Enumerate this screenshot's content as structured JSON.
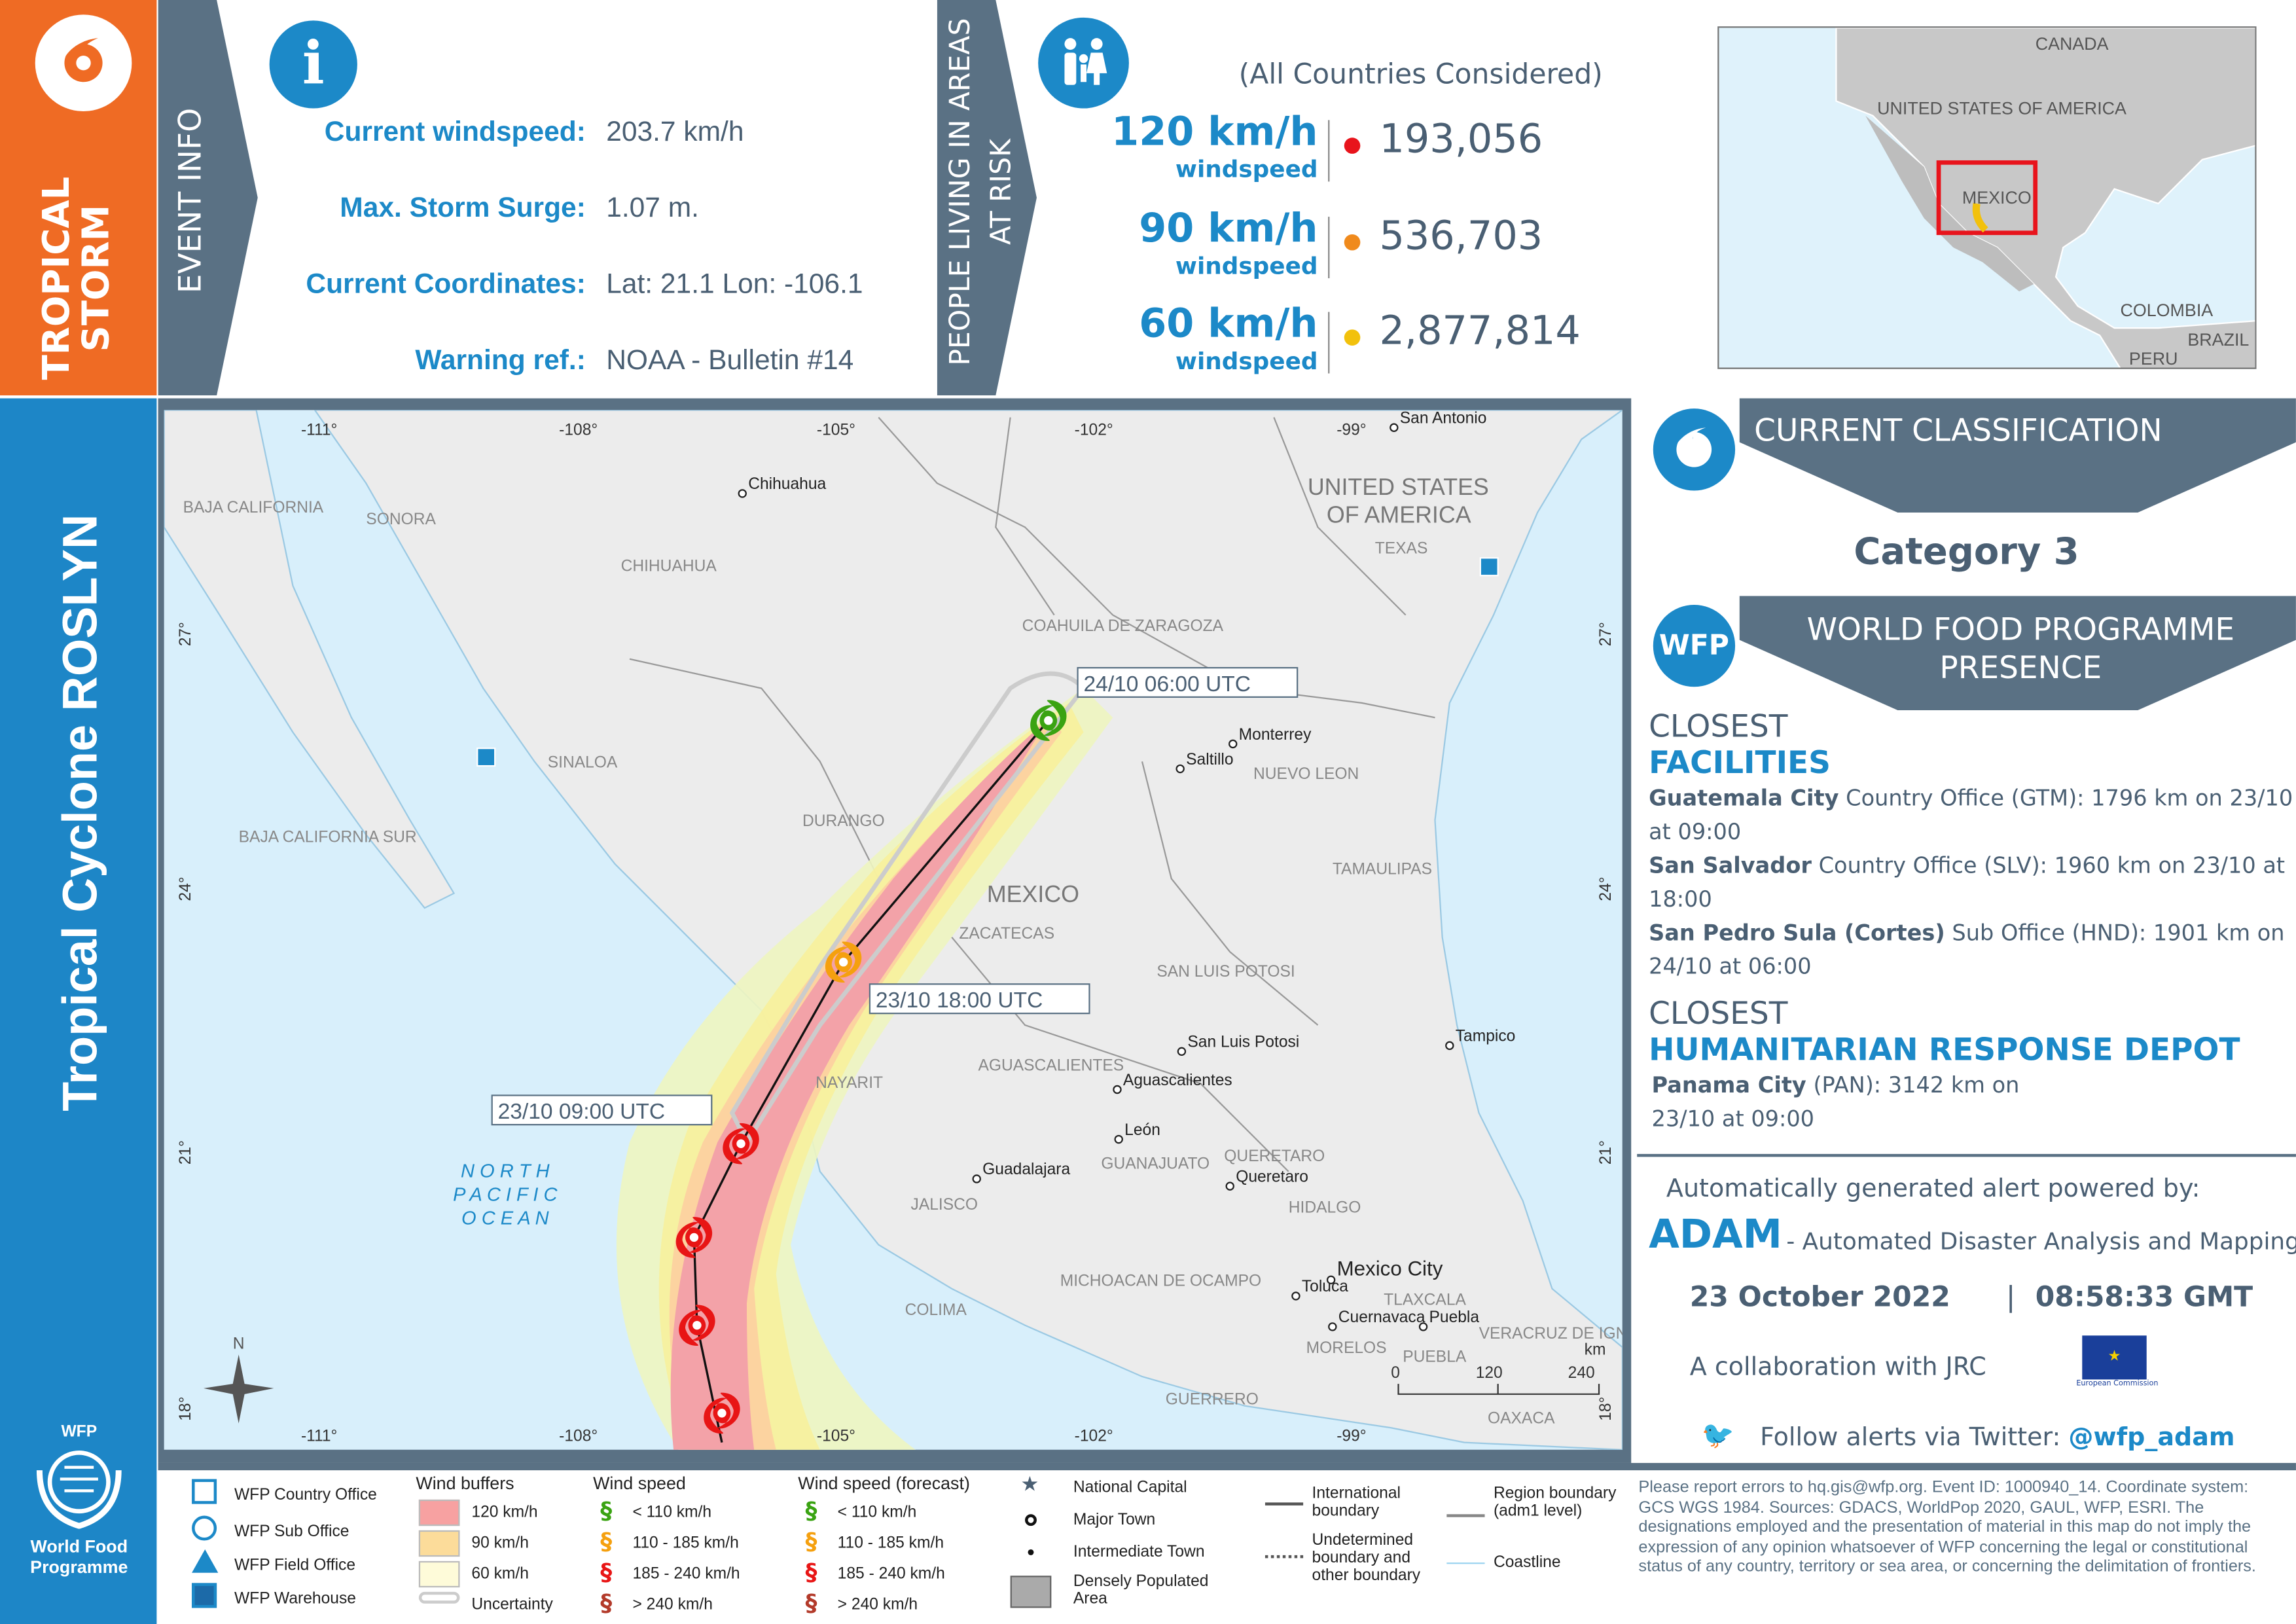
{
  "header": {
    "storm_type": "TROPICAL STORM",
    "cyclone_name": "Tropical Cyclone ROSLYN",
    "event_info_label": "EVENT INFO",
    "people_label_1": "PEOPLE LIVING IN AREAS",
    "people_label_2": "AT RISK"
  },
  "event_info": {
    "rows": [
      {
        "label": "Current windspeed:",
        "value": "203.7 km/h"
      },
      {
        "label": "Max. Storm Surge:",
        "value": "1.07 m."
      },
      {
        "label": "Current Coordinates:",
        "value": "Lat: 21.1 Lon: -106.1"
      },
      {
        "label": "Warning ref.:",
        "value": "NOAA - Bulletin #14"
      }
    ],
    "icon": "info-icon"
  },
  "people_at_risk": {
    "scope": "(All Countries Considered)",
    "rows": [
      {
        "speed": "120 km/h",
        "unit": "windspeed",
        "count": "193,056",
        "color": "#e8141c"
      },
      {
        "speed": "90 km/h",
        "unit": "windspeed",
        "count": "536,703",
        "color": "#f08a1c"
      },
      {
        "speed": "60 km/h",
        "unit": "windspeed",
        "count": "2,877,814",
        "color": "#f2c10c"
      }
    ]
  },
  "inset_map": {
    "labels": [
      "CANADA",
      "UNITED STATES OF AMERICA",
      "MEXICO",
      "COLOMBIA",
      "BRAZIL",
      "PERU"
    ]
  },
  "map": {
    "lon_ticks": [
      "-111°",
      "-108°",
      "-105°",
      "-102°",
      "-99°"
    ],
    "lat_ticks": [
      "27°",
      "24°",
      "21°",
      "18°"
    ],
    "regions": [
      "BAJA CALIFORNIA",
      "SONORA",
      "CHIHUAHUA",
      "COAHUILA DE ZARAGOZA",
      "UNITED STATES",
      "OF AMERICA",
      "TEXAS",
      "SINALOA",
      "DURANGO",
      "NUEVO LEON",
      "TAMAULIPAS",
      "MEXICO",
      "ZACATECAS",
      "SAN LUIS POTOSI",
      "NAYARIT",
      "AGUASCALIENTES",
      "JALISCO",
      "GUANAJUATO",
      "QUERETARO",
      "HIDALGO",
      "MICHOACAN DE OCAMPO",
      "COLIMA",
      "TLAXCALA",
      "MORELOS",
      "PUEBLA",
      "VERACRUZ DE IGNACIO",
      "GUERRERO",
      "OAXACA",
      "BAJA CALIFORNIA SUR"
    ],
    "cities": [
      "Chihuahua",
      "San Antonio",
      "Monterrey",
      "Saltillo",
      "San Luis Potosi",
      "Tampico",
      "Aguascalientes",
      "León",
      "Guadalajara",
      "Queretaro",
      "Mexico City",
      "Toluca",
      "Cuernavaca",
      "Puebla"
    ],
    "ocean": [
      "N O R T H",
      "P A C I F I C",
      "O C E A N"
    ],
    "track_labels": [
      "24/10 06:00 UTC",
      "23/10 18:00 UTC",
      "23/10 09:00 UTC"
    ],
    "scale": {
      "unit": "km",
      "ticks": [
        "0",
        "120",
        "240"
      ]
    },
    "north": "N"
  },
  "classification": {
    "title": "CURRENT CLASSIFICATION",
    "value": "Category 3"
  },
  "presence": {
    "title_1": "WORLD FOOD PROGRAMME",
    "title_2": "PRESENCE",
    "logo": "WFP",
    "facilities_h1": "CLOSEST",
    "facilities_h2": "FACILITIES",
    "facilities": [
      {
        "name": "Guatemala City",
        "text": " Country Office (GTM): 1796 km on 23/10 at 09:00"
      },
      {
        "name": "San Salvador",
        "text": " Country Office (SLV): 1960 km on 23/10 at 18:00"
      },
      {
        "name": "San Pedro Sula (Cortes)",
        "text": " Sub Office (HND): 1901 km on 24/10 at 06:00"
      }
    ],
    "depot_h1": "CLOSEST",
    "depot_h2": "HUMANITARIAN RESPONSE DEPOT",
    "depot": {
      "name": "Panama City",
      "text": " (PAN): 3142 km on 23/10 at 09:00"
    }
  },
  "credits": {
    "powered": "Automatically generated alert powered by:",
    "adam": "ADAM",
    "adam_full": "- Automated Disaster Analysis and Mapping",
    "date": "23 October 2022",
    "sep": "|",
    "time": "08:58:33 GMT",
    "collab": "A collaboration with JRC",
    "eu": "European Commission",
    "twitter_pre": "Follow alerts via Twitter: ",
    "twitter": "@wfp_adam"
  },
  "wfp_logo": {
    "top": "WFP",
    "l1": "World Food",
    "l2": "Programme"
  },
  "legend": {
    "offices": [
      "WFP Country Office",
      "WFP Sub Office",
      "WFP Field Office",
      "WFP Warehouse"
    ],
    "buffers_title": "Wind buffers",
    "buffers": [
      {
        "label": "120 km/h",
        "color": "#f7a1a1"
      },
      {
        "label": "90 km/h",
        "color": "#fcdc9a"
      },
      {
        "label": "60 km/h",
        "color": "#fefbd9"
      },
      {
        "label": "Uncertainty",
        "color": "#ffffff"
      }
    ],
    "speed_title": "Wind speed",
    "forecast_title": "Wind speed (forecast)",
    "speeds": [
      {
        "label": "< 110 km/h",
        "color": "#3aa312"
      },
      {
        "label": "110 - 185 km/h",
        "color": "#f5a00f"
      },
      {
        "label": "185 - 240 km/h",
        "color": "#e81515"
      },
      {
        "label": "> 240 km/h",
        "color": "#b33a2a"
      }
    ],
    "places": [
      "National Capital",
      "Major Town",
      "Intermediate Town",
      "Densely Populated Area"
    ],
    "boundaries": [
      "International boundary",
      "Undetermined boundary and other boundary",
      "Region boundary (adm1 level)",
      "Coastline"
    ]
  },
  "disclaimer": "Please report errors to hq.gis@wfp.org. Event ID: 1000940_14. Coordinate system: GCS WGS 1984. Sources: GDACS, WorldPop 2020, GAUL, WFP, ESRI. The designations employed and the presentation of material in this map do not imply the expression of any opinion whatsoever of WFP concerning the legal or constitutional status of any country, territory or sea area, or concerning the delimitation of frontiers."
}
